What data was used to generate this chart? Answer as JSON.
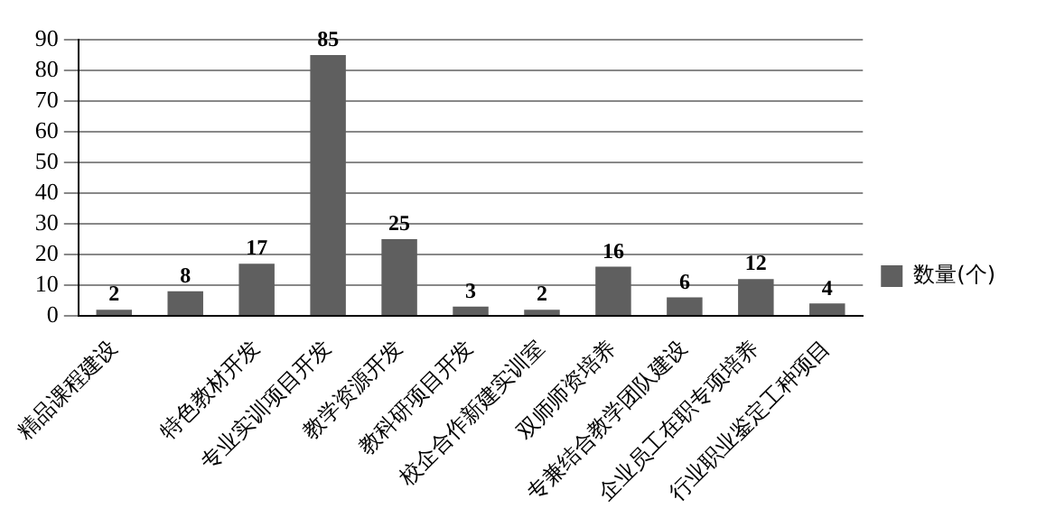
{
  "chart_data": {
    "type": "bar",
    "categories": [
      "精品课程建设",
      null,
      "特色教材开发",
      "专业实训项目开发",
      "教学资源开发",
      "教科研项目开发",
      "校企合作新建实训室",
      "双师师资培养",
      "专兼结合教学团队建设",
      "企业员工在职专项培养",
      "行业职业鉴定工种项目"
    ],
    "series": [
      {
        "name": "数量(个)",
        "color": "#5f5f5f",
        "values": [
          2,
          8,
          17,
          85,
          25,
          3,
          2,
          16,
          6,
          12,
          4
        ]
      }
    ],
    "ylim": [
      0,
      90
    ],
    "yticks": [
      0,
      10,
      20,
      30,
      40,
      50,
      60,
      70,
      80,
      90
    ],
    "grid": "y",
    "legend": "right",
    "data_labels": true
  }
}
